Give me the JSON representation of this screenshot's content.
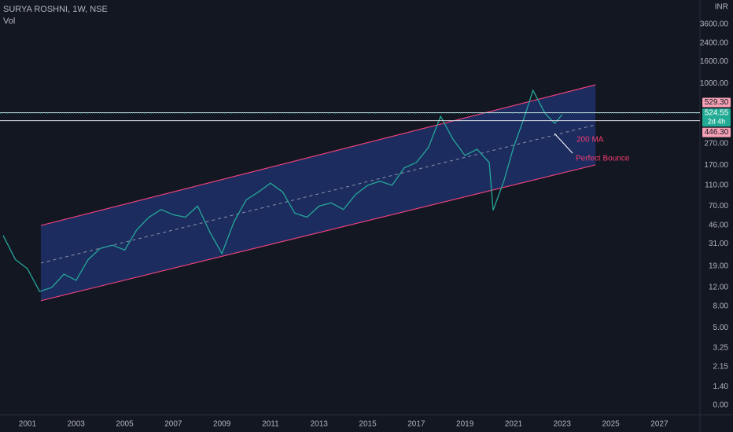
{
  "chart_data": {
    "type": "line",
    "title": "SURYA ROSHNI, 1W, NSE",
    "subtitle": "Vol",
    "currency": "INR",
    "log_scale": true,
    "color": "#26a69a",
    "x": [
      2000.0,
      2000.5,
      2001.0,
      2001.5,
      2002.0,
      2002.5,
      2003.0,
      2003.5,
      2004.0,
      2004.5,
      2005.0,
      2005.5,
      2006.0,
      2006.5,
      2007.0,
      2007.5,
      2008.0,
      2008.5,
      2009.0,
      2009.5,
      2010.0,
      2010.5,
      2011.0,
      2011.5,
      2012.0,
      2012.5,
      2013.0,
      2013.5,
      2014.0,
      2014.5,
      2015.0,
      2015.5,
      2016.0,
      2016.5,
      2017.0,
      2017.5,
      2018.0,
      2018.5,
      2019.0,
      2019.5,
      2020.0,
      2020.16,
      2020.6,
      2021.0,
      2021.4,
      2021.8,
      2022.3,
      2022.7,
      2023.0
    ],
    "values": [
      37,
      22,
      18,
      11,
      12,
      16,
      14,
      22,
      28,
      30,
      27,
      42,
      55,
      65,
      58,
      55,
      70,
      40,
      25,
      50,
      80,
      95,
      115,
      95,
      60,
      55,
      70,
      75,
      65,
      90,
      110,
      120,
      110,
      160,
      180,
      250,
      490,
      300,
      210,
      240,
      180,
      64,
      120,
      250,
      450,
      860,
      520,
      420,
      510
    ],
    "xlim": [
      1999.87,
      2028.67
    ],
    "xticks": [
      2001,
      2003,
      2005,
      2007,
      2009,
      2011,
      2013,
      2015,
      2017,
      2019,
      2021,
      2023,
      2025,
      2027
    ],
    "ylim": [
      0.76,
      6100
    ],
    "yticks": [
      {
        "value": 3600,
        "label": "3600.00"
      },
      {
        "value": 2400,
        "label": "2400.00"
      },
      {
        "value": 1600,
        "label": "1600.00"
      },
      {
        "value": 1000,
        "label": "1000.00"
      },
      {
        "value": 270,
        "label": "270.00"
      },
      {
        "value": 170,
        "label": "170.00"
      },
      {
        "value": 110,
        "label": "110.00"
      },
      {
        "value": 70,
        "label": "70.00"
      },
      {
        "value": 46,
        "label": "46.00"
      },
      {
        "value": 31,
        "label": "31.00"
      },
      {
        "value": 19,
        "label": "19.00"
      },
      {
        "value": 12,
        "label": "12.00"
      },
      {
        "value": 8,
        "label": "8.00"
      },
      {
        "value": 5,
        "label": "5.00"
      },
      {
        "value": 3.25,
        "label": "3.25"
      },
      {
        "value": 2.15,
        "label": "2.15"
      },
      {
        "value": 1.4,
        "label": "1.40"
      }
    ],
    "volume_ticks": [
      {
        "value": 0,
        "label": "0.00"
      }
    ],
    "channel": {
      "x": [
        2001.55,
        2024.37
      ],
      "upper": [
        46,
        970
      ],
      "lower": [
        9,
        171
      ],
      "color": "#e8417a",
      "fill": "rgba(41,72,170,0.45)"
    },
    "price_lines": [
      {
        "value": 529.3,
        "label": "529.30"
      },
      {
        "value": 446.3,
        "label": "446.30"
      }
    ],
    "last_price": {
      "value": 524.55,
      "label": "524.55",
      "countdown": "2d 4h"
    },
    "annotations": [
      "200 MA",
      "Perfect Bounce"
    ]
  }
}
